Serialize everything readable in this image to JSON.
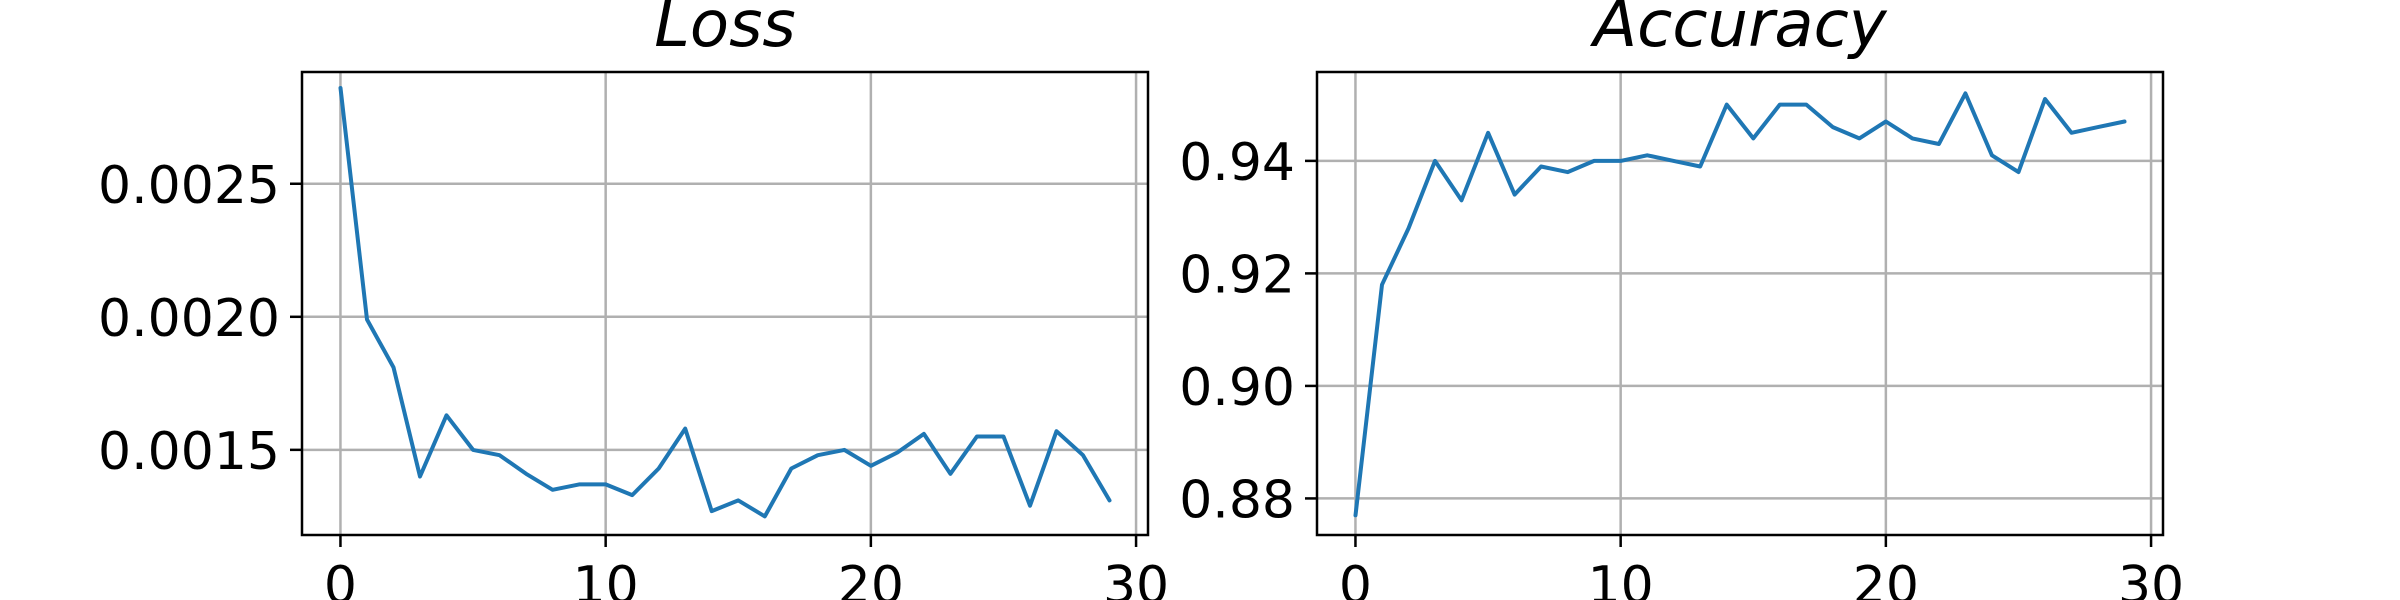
{
  "colors": {
    "series": "#1f77b4",
    "grid": "#b0b0b0"
  },
  "chart_data": [
    {
      "type": "line",
      "title": "Loss",
      "xlabel": "",
      "ylabel": "",
      "grid": true,
      "xlim": [
        -1.45,
        30.45
      ],
      "ylim": [
        0.00118,
        0.00292
      ],
      "xticks": [
        0,
        10,
        20,
        30
      ],
      "xtick_labels": [
        "0",
        "10",
        "20",
        "30"
      ],
      "yticks": [
        0.0015,
        0.002,
        0.0025
      ],
      "ytick_labels": [
        "0.0015",
        "0.0020",
        "0.0025"
      ],
      "series": [
        {
          "x": [
            0,
            1,
            2,
            3,
            4,
            5,
            6,
            7,
            8,
            9,
            10,
            11,
            12,
            13,
            14,
            15,
            16,
            17,
            18,
            19,
            20,
            21,
            22,
            23,
            24,
            25,
            26,
            27,
            28,
            29
          ],
          "y": [
            0.00286,
            0.00199,
            0.00181,
            0.0014,
            0.00163,
            0.0015,
            0.00148,
            0.00141,
            0.00135,
            0.00137,
            0.00137,
            0.00133,
            0.00143,
            0.00158,
            0.00127,
            0.00131,
            0.00125,
            0.00143,
            0.00148,
            0.0015,
            0.00144,
            0.00149,
            0.00156,
            0.00141,
            0.00155,
            0.00155,
            0.00129,
            0.00157,
            0.00148,
            0.00131
          ]
        }
      ]
    },
    {
      "type": "line",
      "title": "Accuracy",
      "xlabel": "",
      "ylabel": "",
      "grid": true,
      "xlim": [
        -1.45,
        30.45
      ],
      "ylim": [
        0.8735,
        0.9558
      ],
      "xticks": [
        0,
        10,
        20,
        30
      ],
      "xtick_labels": [
        "0",
        "10",
        "20",
        "30"
      ],
      "yticks": [
        0.88,
        0.9,
        0.92,
        0.94
      ],
      "ytick_labels": [
        "0.88",
        "0.90",
        "0.92",
        "0.94"
      ],
      "series": [
        {
          "x": [
            0,
            1,
            2,
            3,
            4,
            5,
            6,
            7,
            8,
            9,
            10,
            11,
            12,
            13,
            14,
            15,
            16,
            17,
            18,
            19,
            20,
            21,
            22,
            23,
            24,
            25,
            26,
            27,
            28,
            29
          ],
          "y": [
            0.877,
            0.918,
            0.928,
            0.94,
            0.933,
            0.945,
            0.934,
            0.939,
            0.938,
            0.94,
            0.94,
            0.941,
            0.94,
            0.939,
            0.95,
            0.944,
            0.95,
            0.95,
            0.946,
            0.944,
            0.947,
            0.944,
            0.943,
            0.952,
            0.941,
            0.938,
            0.951,
            0.945,
            0.946,
            0.947
          ]
        }
      ]
    }
  ]
}
